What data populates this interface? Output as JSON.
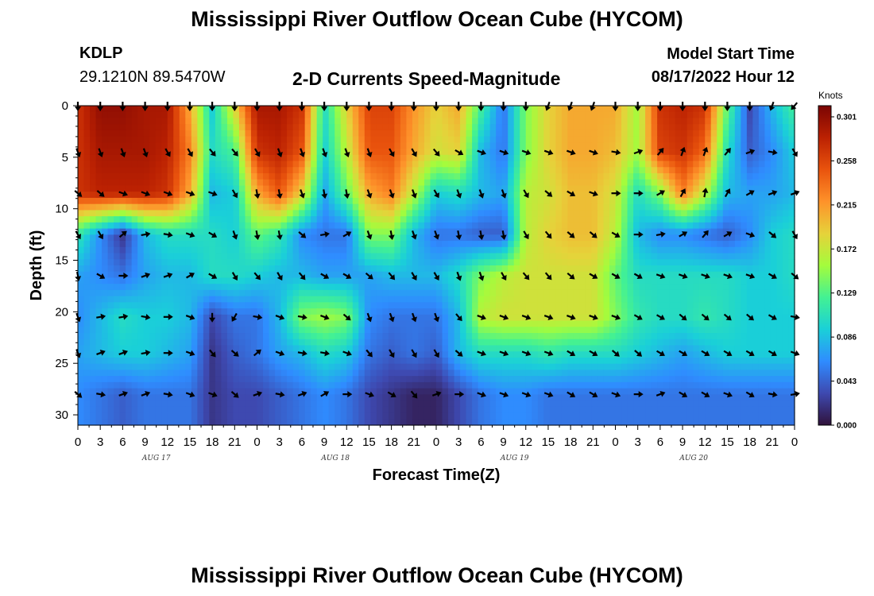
{
  "header": {
    "title_top": "Mississippi River Outflow Ocean Cube (HYCOM)",
    "title_bottom": "Mississippi River Outflow Ocean Cube (HYCOM)",
    "station_id": "KDLP",
    "station_coords": "29.1210N  89.5470W",
    "subtitle": "2-D Currents Speed-Magnitude",
    "model_start_label": "Model Start Time",
    "model_start_value": "08/17/2022 Hour 12"
  },
  "chart_data": {
    "type": "heatmap",
    "title": "2-D Currents Speed-Magnitude",
    "xlabel": "Forecast Time(Z)",
    "ylabel": "Depth (ft)",
    "x_hours": [
      0,
      3,
      6,
      9,
      12,
      15,
      18,
      21,
      0,
      3,
      6,
      9,
      12,
      15,
      18,
      21,
      0,
      3,
      6,
      9,
      12,
      15,
      18,
      21,
      0,
      3,
      6,
      9,
      12,
      15,
      18,
      21,
      0
    ],
    "x_range": [
      0,
      96
    ],
    "date_labels": [
      "AUG 17",
      "AUG 18",
      "AUG 19",
      "AUG 20"
    ],
    "y_ticks": [
      0,
      5,
      10,
      15,
      20,
      25,
      30
    ],
    "y_range": [
      0,
      31
    ],
    "y_reversed": true,
    "colorbar": {
      "label": "Knots",
      "ticks": [
        0.301,
        0.258,
        0.215,
        0.172,
        0.129,
        0.086,
        0.043,
        "0.000"
      ],
      "range": [
        0,
        0.301
      ]
    },
    "depth_levels": [
      0,
      4.5,
      8.5,
      12.5,
      16.5,
      20.5,
      24,
      28
    ],
    "time_columns": [
      0,
      3,
      6,
      9,
      12,
      15,
      18,
      21,
      24,
      27,
      30,
      33,
      36,
      39,
      42,
      45,
      48,
      51,
      54,
      57,
      60,
      63,
      66,
      69,
      72,
      75,
      78,
      81,
      84,
      87,
      90,
      93,
      96
    ],
    "speed": [
      [
        0.26,
        0.29,
        0.29,
        0.28,
        0.28,
        0.2,
        0.09,
        0.18,
        0.28,
        0.28,
        0.26,
        0.1,
        0.18,
        0.25,
        0.25,
        0.21,
        0.18,
        0.2,
        0.12,
        0.05,
        0.14,
        0.18,
        0.2,
        0.2,
        0.2,
        0.15,
        0.26,
        0.27,
        0.26,
        0.13,
        0.03,
        0.08,
        0.12
      ],
      [
        0.26,
        0.28,
        0.28,
        0.28,
        0.27,
        0.22,
        0.1,
        0.12,
        0.26,
        0.27,
        0.24,
        0.09,
        0.16,
        0.24,
        0.24,
        0.2,
        0.17,
        0.18,
        0.08,
        0.05,
        0.14,
        0.18,
        0.2,
        0.2,
        0.19,
        0.15,
        0.25,
        0.26,
        0.23,
        0.1,
        0.04,
        0.06,
        0.09
      ],
      [
        0.26,
        0.27,
        0.27,
        0.27,
        0.26,
        0.2,
        0.08,
        0.09,
        0.2,
        0.24,
        0.18,
        0.07,
        0.13,
        0.2,
        0.22,
        0.16,
        0.09,
        0.1,
        0.08,
        0.07,
        0.16,
        0.17,
        0.19,
        0.19,
        0.17,
        0.1,
        0.14,
        0.22,
        0.16,
        0.08,
        0.07,
        0.07,
        0.08
      ],
      [
        0.11,
        0.06,
        0.02,
        0.08,
        0.1,
        0.1,
        0.1,
        0.09,
        0.13,
        0.11,
        0.06,
        0.05,
        0.05,
        0.14,
        0.14,
        0.08,
        0.05,
        0.05,
        0.04,
        0.04,
        0.16,
        0.18,
        0.19,
        0.19,
        0.16,
        0.08,
        0.06,
        0.06,
        0.05,
        0.04,
        0.06,
        0.09,
        0.1
      ],
      [
        0.07,
        0.06,
        0.05,
        0.07,
        0.08,
        0.08,
        0.1,
        0.1,
        0.09,
        0.08,
        0.08,
        0.07,
        0.07,
        0.07,
        0.08,
        0.08,
        0.08,
        0.1,
        0.14,
        0.16,
        0.17,
        0.17,
        0.17,
        0.17,
        0.13,
        0.1,
        0.1,
        0.1,
        0.1,
        0.1,
        0.09,
        0.09,
        0.1
      ],
      [
        0.06,
        0.08,
        0.1,
        0.09,
        0.09,
        0.08,
        0.03,
        0.05,
        0.05,
        0.08,
        0.14,
        0.15,
        0.14,
        0.06,
        0.05,
        0.05,
        0.05,
        0.08,
        0.16,
        0.17,
        0.17,
        0.17,
        0.17,
        0.17,
        0.14,
        0.11,
        0.1,
        0.1,
        0.11,
        0.1,
        0.09,
        0.09,
        0.09
      ],
      [
        0.07,
        0.08,
        0.09,
        0.09,
        0.08,
        0.07,
        0.02,
        0.04,
        0.05,
        0.07,
        0.08,
        0.1,
        0.09,
        0.05,
        0.04,
        0.05,
        0.04,
        0.08,
        0.1,
        0.1,
        0.1,
        0.11,
        0.1,
        0.1,
        0.1,
        0.09,
        0.08,
        0.07,
        0.08,
        0.09,
        0.09,
        0.09,
        0.09
      ],
      [
        0.06,
        0.05,
        0.04,
        0.05,
        0.05,
        0.05,
        0.02,
        0.03,
        0.03,
        0.04,
        0.05,
        0.06,
        0.05,
        0.03,
        0.02,
        0.01,
        0.01,
        0.03,
        0.05,
        0.06,
        0.06,
        0.05,
        0.05,
        0.05,
        0.05,
        0.05,
        0.05,
        0.05,
        0.05,
        0.05,
        0.05,
        0.05,
        0.05
      ]
    ],
    "direction_deg": [
      [
        180,
        180,
        180,
        180,
        180,
        180,
        180,
        180,
        180,
        180,
        180,
        180,
        180,
        180,
        180,
        180,
        180,
        180,
        180,
        180,
        180,
        200,
        200,
        200,
        180,
        180,
        180,
        180,
        180,
        180,
        180,
        200,
        220
      ],
      [
        160,
        160,
        160,
        160,
        150,
        150,
        140,
        140,
        150,
        160,
        160,
        160,
        160,
        160,
        150,
        150,
        140,
        120,
        110,
        110,
        110,
        110,
        110,
        110,
        100,
        70,
        40,
        20,
        20,
        40,
        70,
        100,
        150
      ],
      [
        130,
        130,
        110,
        110,
        110,
        110,
        110,
        150,
        170,
        170,
        160,
        170,
        170,
        160,
        160,
        160,
        150,
        160,
        160,
        160,
        150,
        130,
        120,
        110,
        90,
        90,
        60,
        30,
        10,
        30,
        60,
        70,
        70
      ],
      [
        150,
        150,
        50,
        80,
        100,
        110,
        120,
        160,
        170,
        170,
        130,
        80,
        60,
        160,
        170,
        160,
        160,
        170,
        170,
        170,
        150,
        140,
        130,
        130,
        120,
        90,
        80,
        60,
        40,
        60,
        110,
        130,
        150
      ],
      [
        170,
        120,
        90,
        70,
        70,
        60,
        120,
        150,
        140,
        150,
        140,
        120,
        120,
        130,
        140,
        150,
        150,
        160,
        160,
        150,
        140,
        140,
        130,
        120,
        120,
        120,
        110,
        110,
        110,
        110,
        110,
        120,
        130
      ],
      [
        160,
        80,
        80,
        100,
        90,
        110,
        180,
        210,
        100,
        110,
        100,
        110,
        130,
        160,
        160,
        160,
        160,
        140,
        110,
        110,
        110,
        110,
        110,
        110,
        110,
        120,
        120,
        130,
        130,
        130,
        130,
        120,
        100
      ],
      [
        160,
        70,
        70,
        80,
        90,
        110,
        140,
        130,
        50,
        110,
        100,
        100,
        110,
        140,
        150,
        150,
        150,
        130,
        110,
        110,
        110,
        110,
        120,
        120,
        130,
        130,
        120,
        120,
        120,
        120,
        120,
        120,
        110
      ],
      [
        130,
        100,
        70,
        70,
        100,
        110,
        110,
        130,
        70,
        100,
        70,
        60,
        90,
        110,
        120,
        140,
        70,
        90,
        110,
        110,
        110,
        110,
        120,
        120,
        110,
        90,
        70,
        120,
        120,
        110,
        120,
        100,
        80
      ]
    ]
  }
}
